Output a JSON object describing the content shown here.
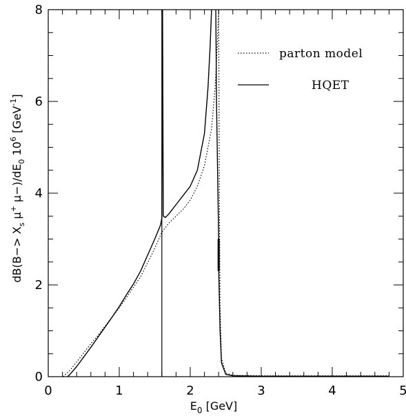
{
  "chart_data": {
    "type": "line",
    "title": "",
    "xlabel": "E_0 [GeV]",
    "xlabel_main": "E",
    "xlabel_sub": "0",
    "xlabel_unit": " [GeV]",
    "ylabel": "dB(B-> X_s μ+ μ-)/dE_0 10^6 [GeV^-1]",
    "ylabel_parts": {
      "p1": "dB(B−> X",
      "p1_sub": "s",
      "p2": " μ",
      "p2_sup": "+",
      "p3": " μ−)/dE",
      "p3_sub": "0",
      "p4": " 10",
      "p4_sup": "6",
      "p5": " [GeV",
      "p5_sup": "-1",
      "p6": "]"
    },
    "xlim": [
      0,
      5
    ],
    "ylim": [
      0,
      8
    ],
    "xticks": [
      {
        "v": 0,
        "label": "0"
      },
      {
        "v": 1,
        "label": "1"
      },
      {
        "v": 2,
        "label": "2"
      },
      {
        "v": 3,
        "label": "3"
      },
      {
        "v": 4,
        "label": "4"
      },
      {
        "v": 5,
        "label": "5"
      }
    ],
    "yticks": [
      {
        "v": 0,
        "label": "0"
      },
      {
        "v": 2,
        "label": "2"
      },
      {
        "v": 4,
        "label": "4"
      },
      {
        "v": 6,
        "label": "6"
      },
      {
        "v": 8,
        "label": "8"
      }
    ],
    "grid": false,
    "legend_position": "top-right",
    "series": [
      {
        "name": "parton model",
        "style": "dotted",
        "color": "#000000",
        "points": [
          [
            0.21,
            0.0
          ],
          [
            0.3,
            0.13
          ],
          [
            0.4,
            0.32
          ],
          [
            0.5,
            0.52
          ],
          [
            0.6,
            0.72
          ],
          [
            0.7,
            0.9
          ],
          [
            0.8,
            1.1
          ],
          [
            0.9,
            1.3
          ],
          [
            1.0,
            1.5
          ],
          [
            1.1,
            1.72
          ],
          [
            1.2,
            1.95
          ],
          [
            1.3,
            2.18
          ],
          [
            1.4,
            2.48
          ],
          [
            1.5,
            2.8
          ],
          [
            1.6,
            3.15
          ],
          [
            1.7,
            3.35
          ],
          [
            1.8,
            3.5
          ],
          [
            1.9,
            3.65
          ],
          [
            2.0,
            3.85
          ],
          [
            2.1,
            4.15
          ],
          [
            2.2,
            4.6
          ],
          [
            2.3,
            5.4
          ],
          [
            2.35,
            6.3
          ],
          [
            2.38,
            7.2
          ],
          [
            2.4,
            8.0
          ]
        ]
      },
      {
        "name": "HQET",
        "style": "solid",
        "color": "#000000",
        "points": [
          [
            0.27,
            0.0
          ],
          [
            0.3,
            0.04
          ],
          [
            0.4,
            0.22
          ],
          [
            0.5,
            0.43
          ],
          [
            0.6,
            0.64
          ],
          [
            0.7,
            0.86
          ],
          [
            0.8,
            1.08
          ],
          [
            0.9,
            1.3
          ],
          [
            1.0,
            1.53
          ],
          [
            1.1,
            1.78
          ],
          [
            1.2,
            2.02
          ],
          [
            1.3,
            2.3
          ],
          [
            1.4,
            2.65
          ],
          [
            1.5,
            3.0
          ],
          [
            1.58,
            3.3
          ],
          [
            1.6,
            3.45
          ],
          [
            1.61,
            8.0
          ],
          [
            1.62,
            3.5
          ],
          [
            1.65,
            3.47
          ],
          [
            1.7,
            3.55
          ],
          [
            1.8,
            3.75
          ],
          [
            1.9,
            3.95
          ],
          [
            2.0,
            4.15
          ],
          [
            2.1,
            4.5
          ],
          [
            2.2,
            5.3
          ],
          [
            2.25,
            6.3
          ],
          [
            2.28,
            7.2
          ],
          [
            2.3,
            8.0
          ]
        ]
      },
      {
        "name": "",
        "style": "solid",
        "color": "#000000",
        "points": [
          [
            2.36,
            8.0
          ],
          [
            2.37,
            6.0
          ],
          [
            2.39,
            4.0
          ],
          [
            2.4,
            3.0
          ],
          [
            2.4,
            2.4
          ],
          [
            2.42,
            1.0
          ],
          [
            2.44,
            0.3
          ],
          [
            2.5,
            0.05
          ],
          [
            2.6,
            0.02
          ],
          [
            3.0,
            0.01
          ],
          [
            4.0,
            0.01
          ],
          [
            4.8,
            0.01
          ]
        ]
      },
      {
        "name": "",
        "style": "dotted",
        "color": "#000000",
        "points": [
          [
            2.4,
            8.0
          ],
          [
            2.41,
            4.0
          ],
          [
            2.42,
            1.5
          ],
          [
            2.44,
            0.4
          ],
          [
            2.5,
            0.08
          ],
          [
            2.6,
            0.03
          ],
          [
            3.0,
            0.02
          ],
          [
            4.0,
            0.02
          ],
          [
            4.8,
            0.02
          ]
        ]
      }
    ],
    "vertical_lines": [
      {
        "x": 1.6,
        "style": "solid"
      }
    ]
  }
}
